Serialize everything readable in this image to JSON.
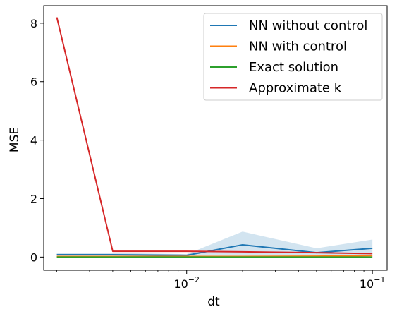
{
  "chart_data": {
    "type": "line",
    "title": "",
    "xlabel": "dt",
    "ylabel": "MSE",
    "xscale": "log",
    "xlim": [
      0.0017,
      0.12
    ],
    "ylim": [
      -0.45,
      8.6
    ],
    "x_ticks": [
      {
        "value": 0.01,
        "base": "10",
        "exp": "−2"
      },
      {
        "value": 0.1,
        "base": "10",
        "exp": "−1"
      }
    ],
    "y_ticks": [
      0,
      2,
      4,
      6,
      8
    ],
    "grid": false,
    "legend_position": "top-right",
    "x": [
      0.002,
      0.004,
      0.01,
      0.02,
      0.05,
      0.1
    ],
    "series": [
      {
        "name": "NN without control",
        "color": "#1f77b4",
        "values": [
          0.08,
          0.08,
          0.06,
          0.42,
          0.15,
          0.3
        ],
        "band_low": [
          0.03,
          0.03,
          0.02,
          0.02,
          0.02,
          0.02
        ],
        "band_high": [
          0.14,
          0.14,
          0.1,
          0.87,
          0.3,
          0.6
        ]
      },
      {
        "name": "NN with control",
        "color": "#ff7f0e",
        "values": [
          0.02,
          0.02,
          0.02,
          0.02,
          0.03,
          0.05
        ]
      },
      {
        "name": "Exact solution",
        "color": "#2ca02c",
        "values": [
          0.0,
          0.0,
          0.0,
          0.0,
          0.0,
          0.0
        ]
      },
      {
        "name": "Approximate k",
        "color": "#d62728",
        "values": [
          8.2,
          0.2,
          0.2,
          0.18,
          0.15,
          0.12
        ]
      }
    ]
  }
}
